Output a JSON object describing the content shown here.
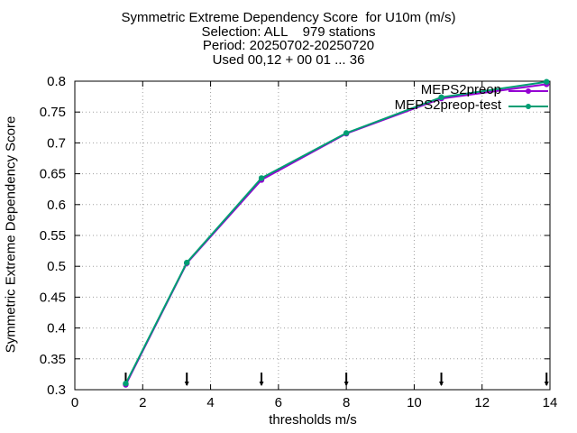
{
  "title_lines": [
    "Symmetric Extreme Dependency Score  for U10m (m/s)",
    "Selection: ALL    979 stations",
    "Period: 20250702-20250720",
    "Used 00,12 + 00 01 ... 36"
  ],
  "chart_data": {
    "type": "line",
    "xlabel": "thresholds m/s",
    "ylabel": "Symmetric Extreme Dependency Score",
    "xlim": [
      0,
      14
    ],
    "ylim": [
      0.3,
      0.8
    ],
    "xticks": [
      0,
      2,
      4,
      6,
      8,
      10,
      12,
      14
    ],
    "yticks": [
      0.3,
      0.35,
      0.4,
      0.45,
      0.5,
      0.55,
      0.6,
      0.65,
      0.7,
      0.75,
      0.8
    ],
    "grid": true,
    "legend_position": "top-right",
    "series": [
      {
        "name": "MEPS2preop",
        "color": "#9400d3",
        "x": [
          1.5,
          3.3,
          5.5,
          8.0,
          10.8,
          13.9
        ],
        "y": [
          0.308,
          0.505,
          0.64,
          0.715,
          0.772,
          0.795
        ]
      },
      {
        "name": "MEPS2preop-test",
        "color": "#009e73",
        "x": [
          1.5,
          3.3,
          5.5,
          8.0,
          10.8,
          13.9
        ],
        "y": [
          0.31,
          0.506,
          0.643,
          0.716,
          0.774,
          0.799
        ]
      }
    ],
    "threshold_markers_x": [
      1.5,
      3.3,
      5.5,
      8.0,
      10.8,
      13.9
    ]
  }
}
